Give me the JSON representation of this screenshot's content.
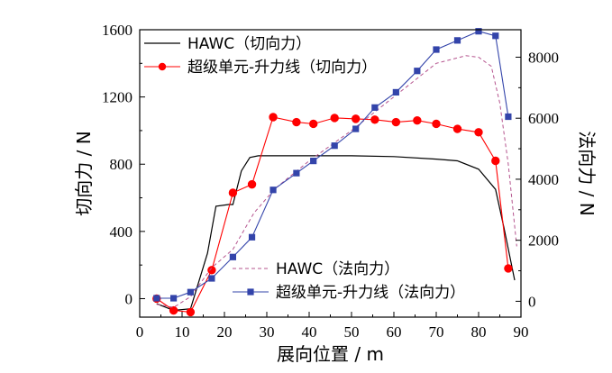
{
  "chart_data": {
    "type": "line",
    "x_axis": {
      "label": "展向位置 / m",
      "range": [
        0,
        90
      ],
      "ticks": [
        0,
        10,
        20,
        30,
        40,
        50,
        60,
        70,
        80,
        90
      ]
    },
    "y_left": {
      "label": "切向力 / N",
      "range": [
        -110,
        1600
      ],
      "ticks": [
        0,
        400,
        800,
        1200,
        1600
      ]
    },
    "y_right": {
      "label": "法向力 / N",
      "range": [
        -520,
        8900
      ],
      "ticks": [
        0,
        2000,
        4000,
        6000,
        8000
      ]
    },
    "legend": {
      "top_placement": "top-left",
      "bottom_placement": "bottom-center"
    },
    "series": [
      {
        "name": "HAWC（切向力）",
        "axis": "left",
        "style": "solid",
        "color": "#000000",
        "x": [
          4,
          8,
          12,
          16,
          18,
          21,
          22,
          24,
          26,
          28,
          30,
          35,
          40,
          50,
          60,
          70,
          75,
          80,
          84,
          86,
          88.5
        ],
        "y": [
          -30,
          -70,
          -60,
          270,
          550,
          560,
          560,
          760,
          840,
          850,
          850,
          850,
          850,
          850,
          845,
          830,
          820,
          770,
          650,
          420,
          110
        ]
      },
      {
        "name": "超级单元-升力线（切向力）",
        "axis": "left",
        "style": "line-circle",
        "color": "#ff0000",
        "x": [
          4,
          8,
          12,
          17,
          22,
          26.5,
          31.5,
          37,
          41,
          46,
          51,
          55.5,
          60.5,
          65.5,
          70,
          75,
          80,
          84,
          87
        ],
        "y": [
          0,
          -70,
          -80,
          170,
          630,
          680,
          1080,
          1050,
          1040,
          1075,
          1070,
          1065,
          1050,
          1060,
          1040,
          1010,
          990,
          820,
          180
        ]
      },
      {
        "name": "HAWC（法向力）",
        "axis": "right",
        "style": "dashed",
        "color": "#b5548e",
        "x": [
          4,
          8,
          12,
          17,
          22,
          27,
          32,
          40,
          50,
          60,
          70,
          77,
          80,
          83,
          85,
          87,
          89
        ],
        "y": [
          -100,
          -200,
          150,
          1100,
          1700,
          2900,
          3700,
          4600,
          5600,
          6700,
          7800,
          8050,
          8000,
          7700,
          6500,
          4500,
          1800
        ]
      },
      {
        "name": "超级单元-升力线（法向力）",
        "axis": "right",
        "style": "line-square",
        "color": "#3344aa",
        "x": [
          4,
          8,
          12,
          17,
          22,
          26.5,
          31.5,
          37,
          41,
          46,
          51,
          55.5,
          60.5,
          65.5,
          70,
          75,
          80,
          84,
          87
        ],
        "y": [
          100,
          100,
          300,
          750,
          1450,
          2100,
          3650,
          4200,
          4600,
          5100,
          5650,
          6350,
          6850,
          7550,
          8250,
          8550,
          8850,
          8700,
          6050
        ]
      }
    ]
  }
}
